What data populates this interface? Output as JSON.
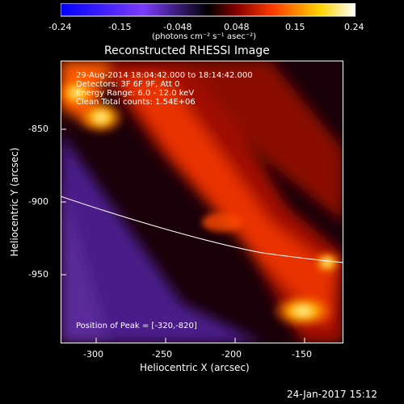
{
  "colorbar": {
    "ticks": [
      "-0.24",
      "-0.15",
      "-0.048",
      "0.048",
      "0.15",
      "0.24"
    ],
    "units": "(photons cm⁻² s⁻¹ asec⁻²)",
    "colors": [
      "#0000ff",
      "#7b3cff",
      "#000000",
      "#8a0000",
      "#ff3a00",
      "#ffd400",
      "#ffffff"
    ]
  },
  "image": {
    "title": "Reconstructed RHESSI Image",
    "info_lines": [
      "29-Aug-2014 18:04:42.000 to 18:14:42.000",
      "Detectors: 3F 6F 9F, Att 0",
      "Energy Range: 6.0 - 12.0 keV",
      "Clean     Total counts: 1.54E+06"
    ],
    "peak_text": "Position of Peak = [-320,-820]",
    "x_axis_label": "Heliocentric X (arcsec)",
    "y_axis_label": "Heliocentric Y (arcsec)",
    "x_ticks": [
      "-300",
      "-250",
      "-200",
      "-150"
    ],
    "y_ticks": [
      "-850",
      "-900",
      "-950"
    ]
  },
  "timestamp": "24-Jan-2017 15:12"
}
